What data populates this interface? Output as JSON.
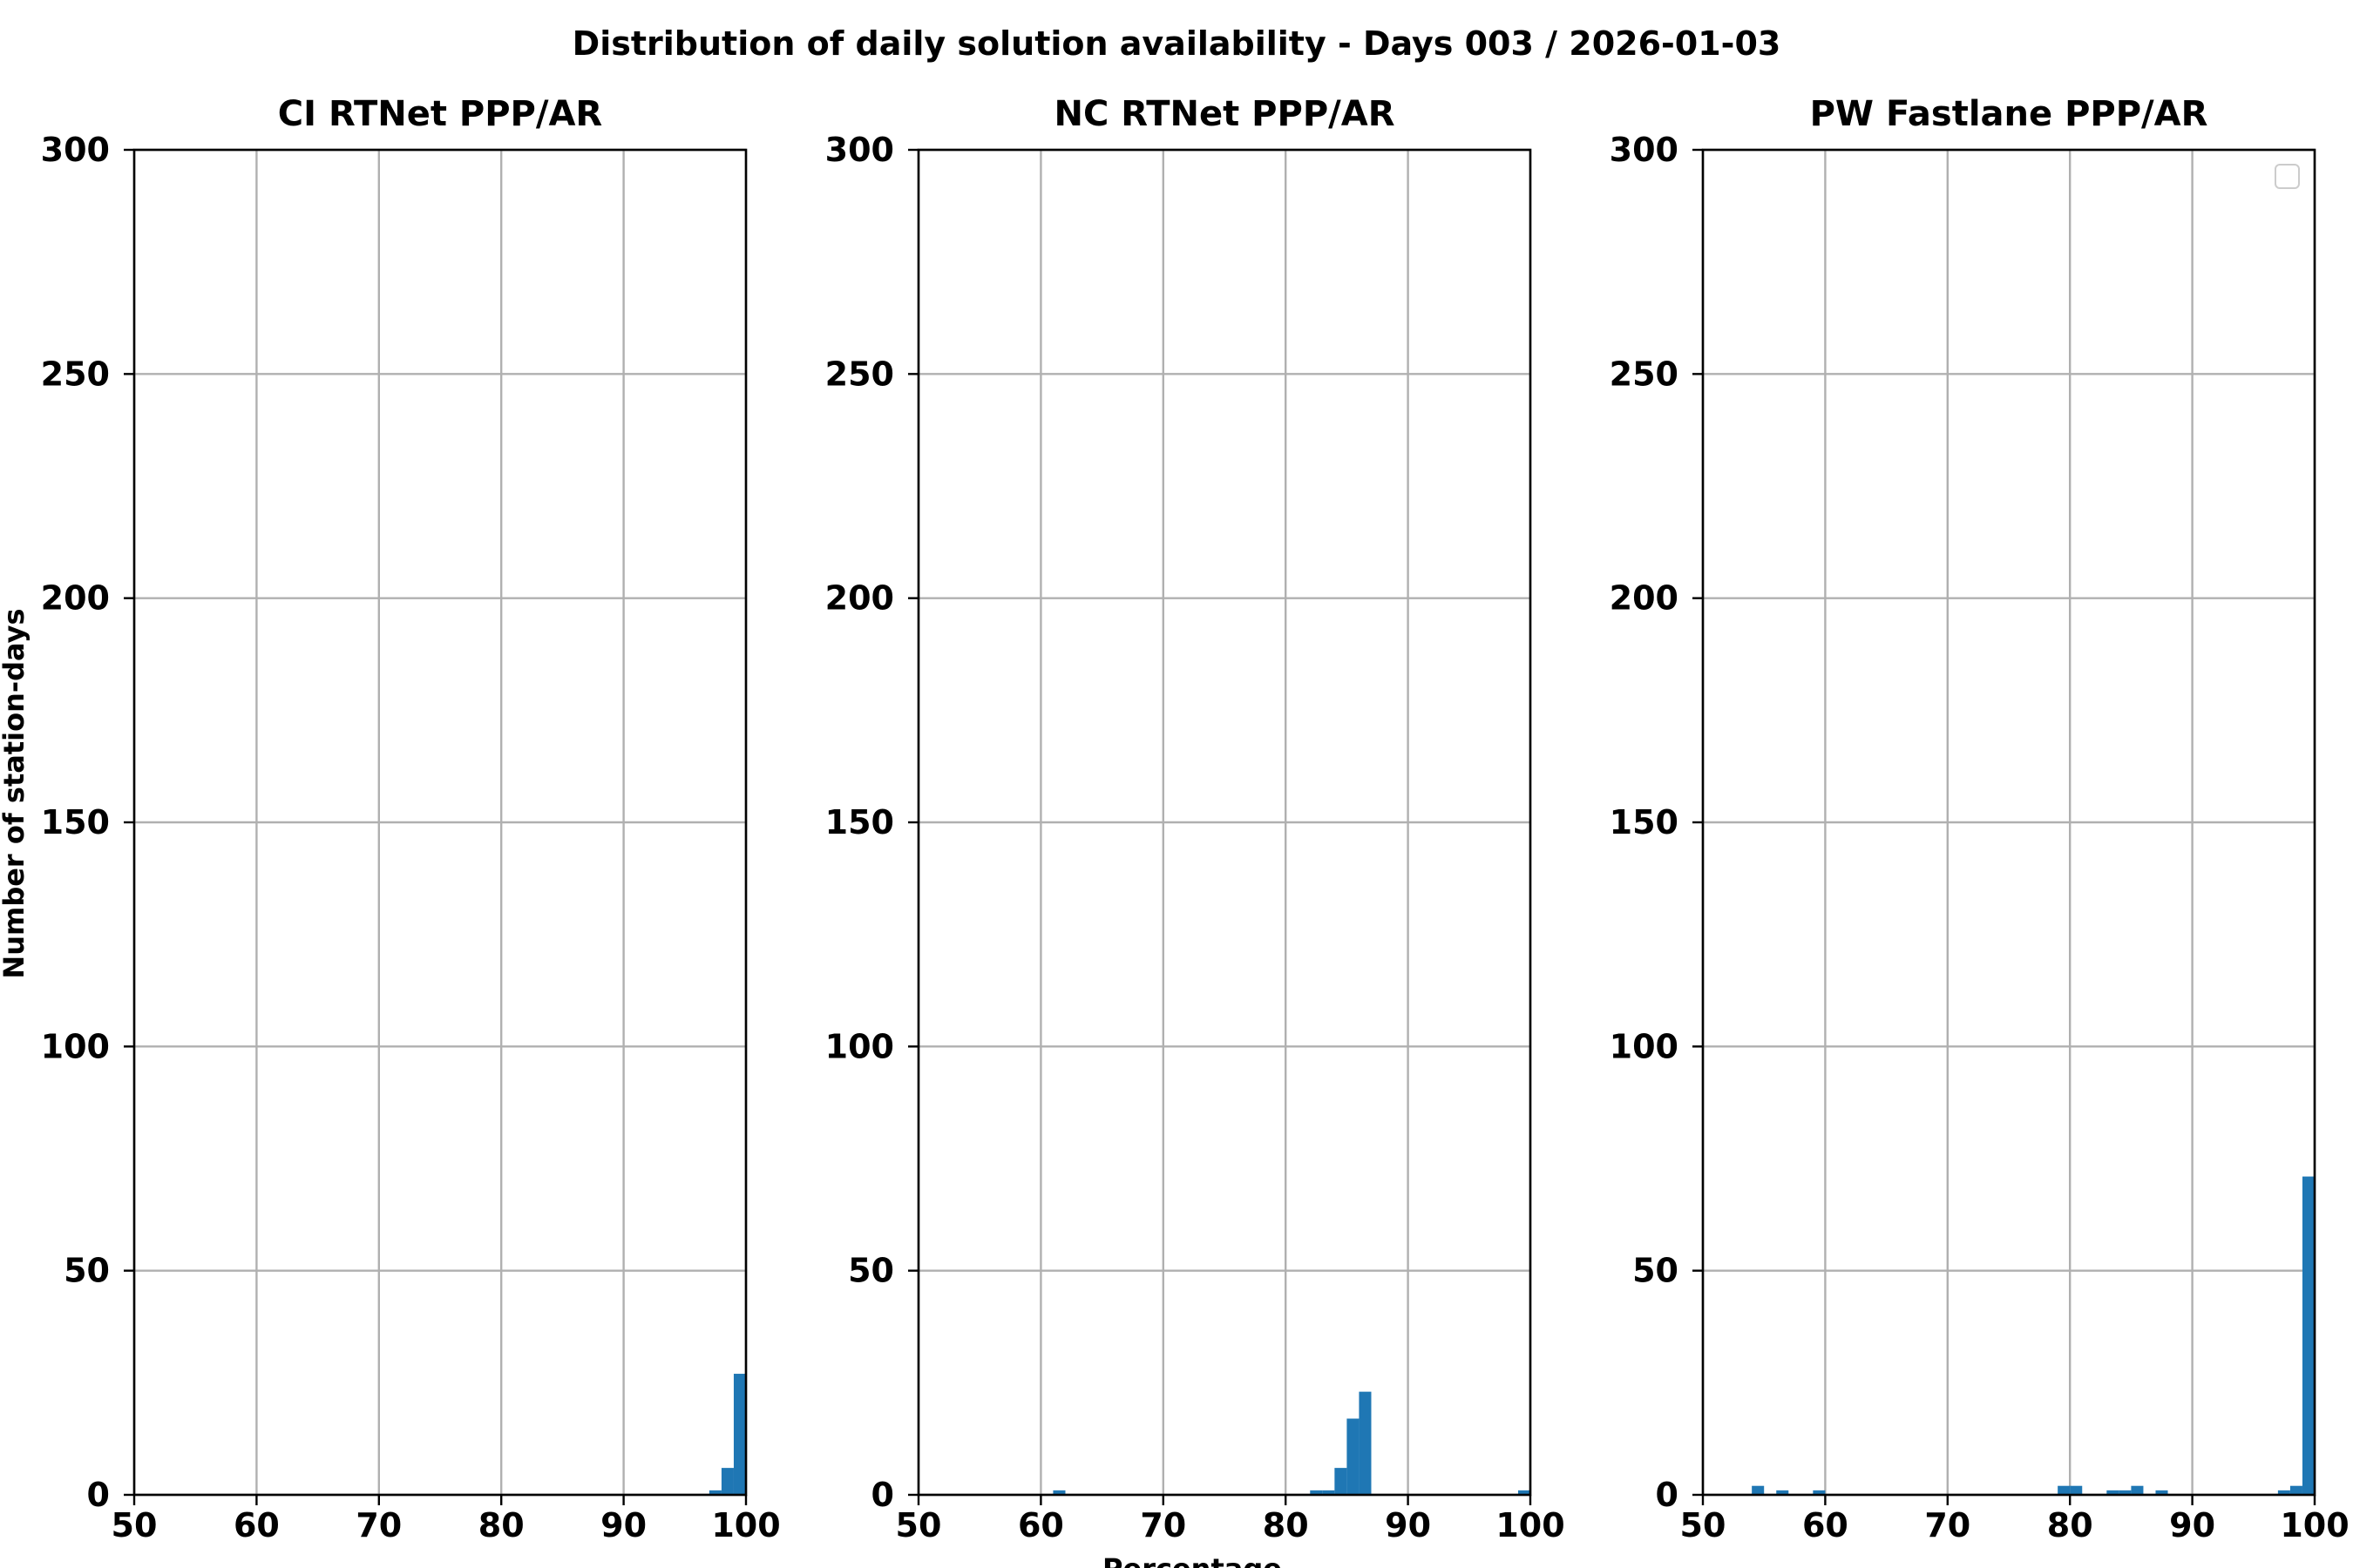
{
  "figure": {
    "title": "Distribution of daily solution availability - Days 003  / 2026-01-03",
    "ylabel": "Number of station-days",
    "xlabel": "Percentage"
  },
  "colors": {
    "bar": "#1f77b4",
    "grid": "#b0b0b0",
    "axis": "#000000"
  },
  "chart_data": [
    {
      "type": "bar",
      "title": "CI RTNet PPP/AR",
      "xlim": [
        50,
        100
      ],
      "ylim": [
        0,
        300
      ],
      "xticks": [
        "50",
        "60",
        "70",
        "80",
        "90",
        "100"
      ],
      "yticks": [
        "0",
        "50",
        "100",
        "150",
        "200",
        "250",
        "300"
      ],
      "grid": true,
      "legend": false,
      "bin_width": 1,
      "bins": [
        {
          "x": 97,
          "value": 1
        },
        {
          "x": 98,
          "value": 6
        },
        {
          "x": 99,
          "value": 27
        }
      ]
    },
    {
      "type": "bar",
      "title": "NC RTNet PPP/AR",
      "xlim": [
        50,
        100
      ],
      "ylim": [
        0,
        300
      ],
      "xticks": [
        "50",
        "60",
        "70",
        "80",
        "90",
        "100"
      ],
      "yticks": [
        "0",
        "50",
        "100",
        "150",
        "200",
        "250",
        "300"
      ],
      "grid": true,
      "legend": false,
      "bin_width": 1,
      "bins": [
        {
          "x": 61,
          "value": 1
        },
        {
          "x": 82,
          "value": 1
        },
        {
          "x": 83,
          "value": 1
        },
        {
          "x": 84,
          "value": 6
        },
        {
          "x": 85,
          "value": 17
        },
        {
          "x": 86,
          "value": 23
        },
        {
          "x": 99,
          "value": 1
        }
      ]
    },
    {
      "type": "bar",
      "title": "PW Fastlane PPP/AR",
      "xlim": [
        50,
        100
      ],
      "ylim": [
        0,
        300
      ],
      "xticks": [
        "50",
        "60",
        "70",
        "80",
        "90",
        "100"
      ],
      "yticks": [
        "0",
        "50",
        "100",
        "150",
        "200",
        "250",
        "300"
      ],
      "grid": true,
      "legend": "upper right (empty)",
      "bin_width": 1,
      "bins": [
        {
          "x": 54,
          "value": 2
        },
        {
          "x": 56,
          "value": 1
        },
        {
          "x": 59,
          "value": 1
        },
        {
          "x": 79,
          "value": 2
        },
        {
          "x": 80,
          "value": 2
        },
        {
          "x": 83,
          "value": 1
        },
        {
          "x": 84,
          "value": 1
        },
        {
          "x": 85,
          "value": 2
        },
        {
          "x": 87,
          "value": 1
        },
        {
          "x": 97,
          "value": 1
        },
        {
          "x": 98,
          "value": 2
        },
        {
          "x": 99,
          "value": 71
        }
      ]
    }
  ]
}
